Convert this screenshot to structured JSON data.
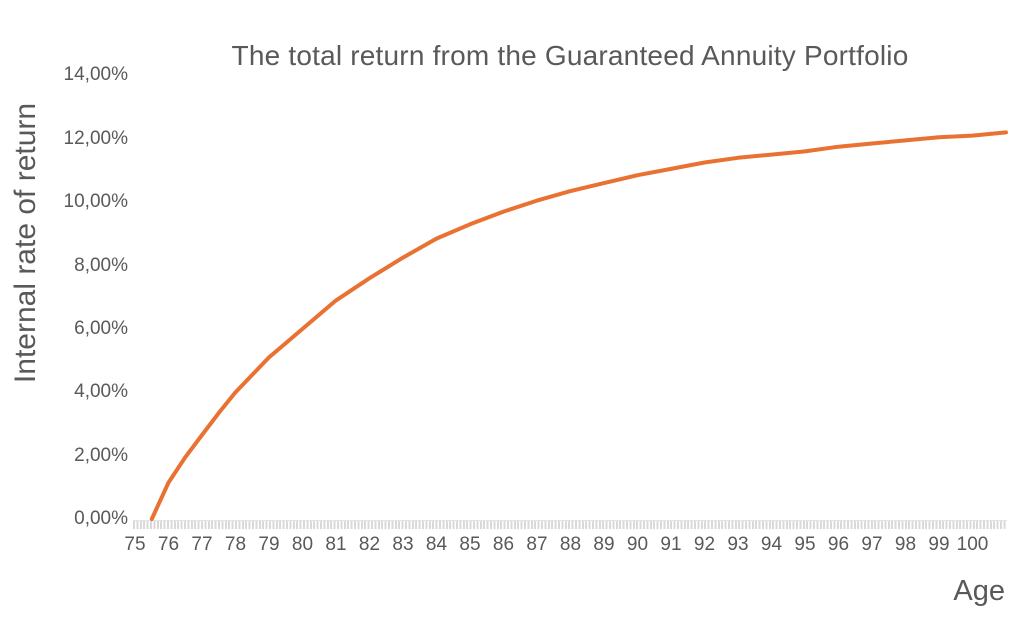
{
  "chart": {
    "title": "The total return from the Guaranteed Annuity Portfolio",
    "y_axis_title": "Internal rate of return",
    "x_axis_title": "Age"
  },
  "colors": {
    "series_line": "#E97132",
    "text": "#595959",
    "tick_marks": "#D9D9D9",
    "background": "#FFFFFF"
  },
  "chart_data": {
    "type": "line",
    "title": "The total return from the Guaranteed Annuity Portfolio",
    "xlabel": "Age",
    "ylabel": "Internal rate of return",
    "xlim": [
      75,
      101.2
    ],
    "ylim": [
      0,
      14
    ],
    "grid": false,
    "legend": false,
    "y_tick_labels": [
      "0,00%",
      "2,00%",
      "4,00%",
      "6,00%",
      "8,00%",
      "10,00%",
      "12,00%",
      "14,00%"
    ],
    "y_tick_values": [
      0,
      2,
      4,
      6,
      8,
      10,
      12,
      14
    ],
    "x_tick_labels": [
      "75",
      "76",
      "77",
      "78",
      "79",
      "80",
      "81",
      "82",
      "83",
      "84",
      "85",
      "86",
      "87",
      "88",
      "89",
      "90",
      "91",
      "92",
      "93",
      "94",
      "95",
      "96",
      "97",
      "98",
      "99",
      "100"
    ],
    "series": [
      {
        "name": "Internal rate of return",
        "color": "#E97132",
        "x": [
          75.5,
          76,
          76.5,
          77,
          77.5,
          78,
          78.5,
          79,
          79.5,
          80,
          81,
          82,
          83,
          84,
          85,
          86,
          87,
          88,
          89,
          90,
          91,
          92,
          93,
          94,
          95,
          96,
          97,
          98,
          99,
          100,
          101
        ],
        "y_percent": [
          0.0,
          1.15,
          1.95,
          2.65,
          3.35,
          4.0,
          4.55,
          5.1,
          5.55,
          6.0,
          6.9,
          7.6,
          8.25,
          8.85,
          9.3,
          9.7,
          10.05,
          10.35,
          10.6,
          10.85,
          11.05,
          11.25,
          11.4,
          11.5,
          11.6,
          11.75,
          11.85,
          11.95,
          12.05,
          12.1,
          12.2
        ]
      }
    ]
  }
}
